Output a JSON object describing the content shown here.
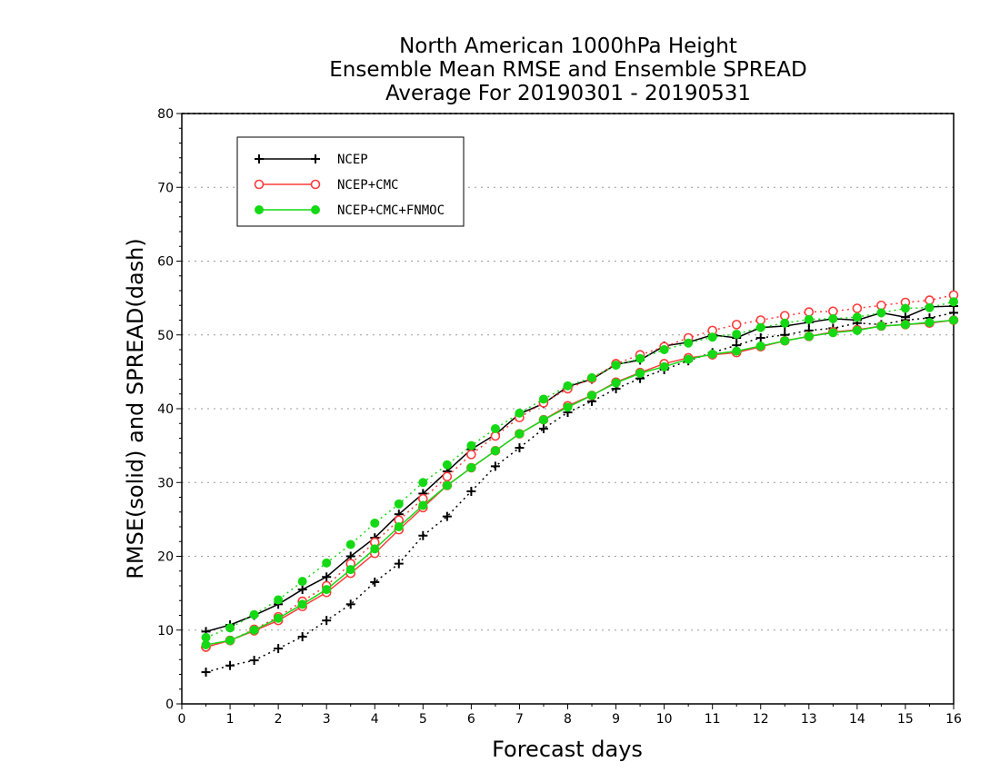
{
  "chart_data": {
    "type": "line",
    "title": [
      "North American 1000hPa Height",
      "Ensemble Mean RMSE and Ensemble SPREAD",
      "Average For 20190301 - 20190531"
    ],
    "xlabel": "Forecast days",
    "ylabel": "RMSE(solid) and SPREAD(dash)",
    "xlim": [
      0,
      16
    ],
    "ylim": [
      0,
      80
    ],
    "xticks": [
      "0",
      "1",
      "2",
      "3",
      "4",
      "5",
      "6",
      "7",
      "8",
      "9",
      "10",
      "11",
      "12",
      "13",
      "14",
      "15",
      "16"
    ],
    "yticks": [
      "0",
      "10",
      "20",
      "30",
      "40",
      "50",
      "60",
      "70",
      "80"
    ],
    "grid": true,
    "legend_placement": "top-left",
    "x": [
      0.5,
      1,
      1.5,
      2,
      2.5,
      3,
      3.5,
      4,
      4.5,
      5,
      5.5,
      6,
      6.5,
      7,
      7.5,
      8,
      8.5,
      9,
      9.5,
      10,
      10.5,
      11,
      11.5,
      12,
      12.5,
      13,
      13.5,
      14,
      14.5,
      15,
      15.5,
      16
    ],
    "series": [
      {
        "name": "NCEP",
        "color": "#000000",
        "marker": "plus",
        "rmse": [
          9.8,
          10.7,
          12.0,
          13.5,
          15.5,
          17.2,
          20.0,
          22.5,
          25.7,
          28.5,
          31.5,
          34.5,
          36.5,
          39.3,
          40.7,
          43.0,
          44.0,
          46.0,
          46.6,
          48.5,
          49.0,
          50.0,
          49.6,
          51.0,
          51.2,
          51.7,
          52.2,
          52.0,
          53.0,
          52.4,
          53.8,
          53.9
        ],
        "spread": [
          4.3,
          5.2,
          5.9,
          7.5,
          9.1,
          11.3,
          13.5,
          16.5,
          19.0,
          22.8,
          25.4,
          28.8,
          32.2,
          34.7,
          37.3,
          39.5,
          41.0,
          42.7,
          44.1,
          45.3,
          46.5,
          47.6,
          48.6,
          49.6,
          50.0,
          50.6,
          50.9,
          51.6,
          51.4,
          52.0,
          52.3,
          53.0
        ]
      },
      {
        "name": "NCEP+CMC",
        "color": "#ff3b3b",
        "marker": "open-circle",
        "rmse": [
          7.7,
          8.6,
          9.9,
          11.3,
          13.2,
          15.1,
          17.7,
          20.4,
          23.6,
          26.6,
          29.6,
          32.0,
          34.3,
          36.6,
          38.5,
          40.4,
          41.8,
          43.6,
          44.9,
          46.1,
          46.9,
          47.3,
          47.6,
          48.4,
          49.2,
          49.8,
          50.4,
          50.7,
          51.2,
          51.4,
          51.6,
          52.0
        ],
        "spread": [
          7.7,
          8.6,
          10.1,
          11.8,
          13.9,
          16.0,
          19.0,
          21.9,
          24.9,
          27.8,
          30.8,
          33.8,
          36.3,
          38.8,
          40.8,
          42.7,
          44.1,
          46.1,
          47.3,
          48.4,
          49.6,
          50.6,
          51.4,
          52.0,
          52.6,
          53.1,
          53.2,
          53.6,
          54.0,
          54.4,
          54.7,
          55.4
        ]
      },
      {
        "name": "NCEP+CMC+FNMOC",
        "color": "#14d914",
        "marker": "filled-circle",
        "rmse": [
          8.0,
          8.6,
          10.0,
          11.6,
          13.5,
          15.5,
          18.2,
          21.0,
          24.0,
          26.9,
          29.6,
          32.0,
          34.3,
          36.6,
          38.5,
          40.2,
          41.8,
          43.5,
          44.8,
          45.7,
          46.7,
          47.4,
          47.8,
          48.5,
          49.2,
          49.8,
          50.3,
          50.6,
          51.2,
          51.4,
          51.7,
          52.0
        ],
        "spread": [
          9.0,
          10.3,
          12.1,
          14.1,
          16.6,
          19.1,
          21.6,
          24.5,
          27.1,
          30.0,
          32.4,
          35.0,
          37.3,
          39.4,
          41.3,
          43.1,
          44.2,
          45.9,
          46.8,
          48.0,
          48.9,
          49.7,
          50.1,
          51.0,
          51.6,
          52.1,
          52.2,
          52.4,
          53.0,
          53.6,
          53.7,
          54.5
        ]
      }
    ]
  }
}
